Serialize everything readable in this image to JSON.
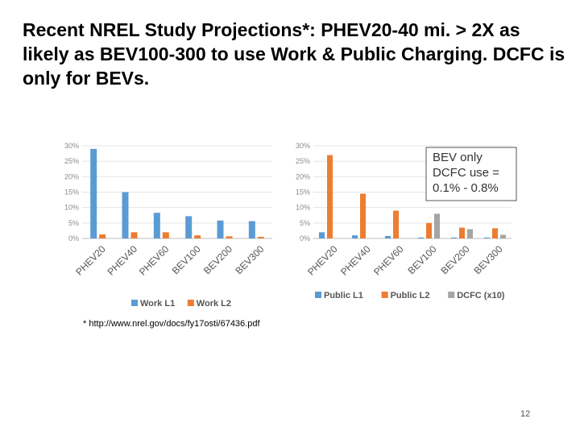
{
  "slide": {
    "title": "Recent NREL Study Projections*: PHEV20-40 mi. > 2X as likely as BEV100-300 to use Work & Public Charging. DCFC is only for BEVs.",
    "footnote": "* http://www.nrel.gov/docs/fy17osti/67436.pdf",
    "page_number": "12"
  },
  "chart_data": [
    {
      "type": "bar",
      "categories": [
        "PHEV20",
        "PHEV40",
        "PHEV60",
        "BEV100",
        "BEV200",
        "BEV300"
      ],
      "y_ticks": [
        "0%",
        "5%",
        "10%",
        "15%",
        "20%",
        "25%",
        "30%"
      ],
      "ylim": [
        0,
        30
      ],
      "grid": true,
      "legend_position": "bottom",
      "series": [
        {
          "name": "Work L1",
          "color": "#5B9BD5",
          "values": [
            29,
            15,
            8.3,
            7.2,
            5.8,
            5.6
          ]
        },
        {
          "name": "Work L2",
          "color": "#ED7D31",
          "values": [
            1.3,
            2.0,
            2.0,
            1.0,
            0.7,
            0.5
          ]
        }
      ]
    },
    {
      "type": "bar",
      "categories": [
        "PHEV20",
        "PHEV40",
        "PHEV60",
        "BEV100",
        "BEV200",
        "BEV300"
      ],
      "y_ticks": [
        "0%",
        "5%",
        "10%",
        "15%",
        "20%",
        "25%",
        "30%"
      ],
      "ylim": [
        0,
        30
      ],
      "grid": true,
      "legend_position": "bottom",
      "series": [
        {
          "name": "Public L1",
          "color": "#5B9BD5",
          "values": [
            2.0,
            1.0,
            0.8,
            0.3,
            0.3,
            0.3
          ]
        },
        {
          "name": "Public L2",
          "color": "#ED7D31",
          "values": [
            27,
            14.5,
            9.0,
            5.0,
            3.5,
            3.3
          ]
        },
        {
          "name": "DCFC (x10)",
          "color": "#A5A5A5",
          "values": [
            0,
            0,
            0,
            8.0,
            3.0,
            1.2
          ]
        }
      ],
      "annotation": {
        "lines": [
          "BEV only",
          "DCFC use =",
          "0.1% - 0.8%"
        ]
      }
    }
  ]
}
